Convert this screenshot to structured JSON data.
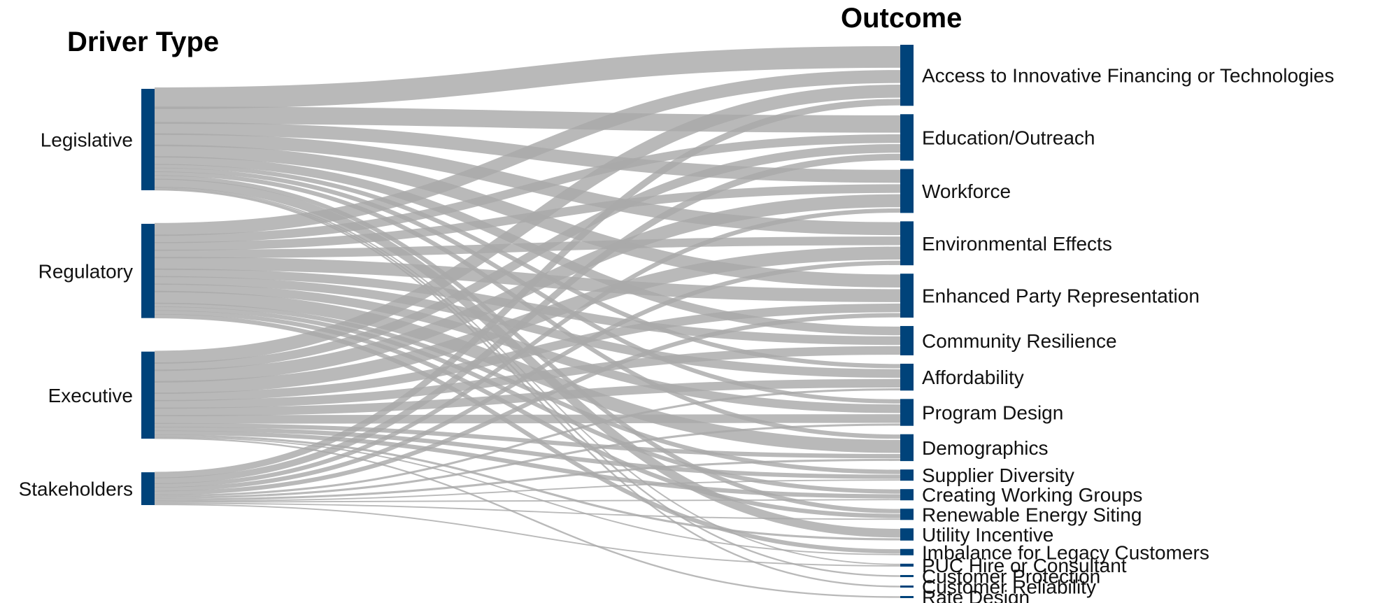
{
  "titles": {
    "left": "Driver Type",
    "right": "Outcome"
  },
  "colors": {
    "node": "#00437a",
    "link": "#a9a9a9"
  },
  "diagram": {
    "type": "sankey",
    "sources": [
      {
        "name": "Legislative"
      },
      {
        "name": "Regulatory"
      },
      {
        "name": "Executive"
      },
      {
        "name": "Stakeholders"
      }
    ],
    "targets": [
      {
        "name": "Access to Innovative Financing or Technologies"
      },
      {
        "name": "Education/Outreach"
      },
      {
        "name": "Workforce"
      },
      {
        "name": "Environmental Effects"
      },
      {
        "name": "Enhanced Party Representation"
      },
      {
        "name": "Community Resilience"
      },
      {
        "name": "Affordability"
      },
      {
        "name": "Program Design"
      },
      {
        "name": "Demographics"
      },
      {
        "name": "Supplier Diversity"
      },
      {
        "name": "Creating Working Groups"
      },
      {
        "name": "Renewable Energy Siting"
      },
      {
        "name": "Utility Incentive"
      },
      {
        "name": "Imbalance for Legacy Customers"
      },
      {
        "name": "PUC Hire or Consultant"
      },
      {
        "name": "Customer Protection"
      },
      {
        "name": "Customer Reliability"
      },
      {
        "name": "Rate Design"
      }
    ],
    "links": [
      {
        "s": 0,
        "t": 0,
        "v": 5
      },
      {
        "s": 0,
        "t": 1,
        "v": 4
      },
      {
        "s": 0,
        "t": 2,
        "v": 3
      },
      {
        "s": 0,
        "t": 3,
        "v": 3
      },
      {
        "s": 0,
        "t": 4,
        "v": 3
      },
      {
        "s": 0,
        "t": 5,
        "v": 2
      },
      {
        "s": 0,
        "t": 6,
        "v": 1
      },
      {
        "s": 0,
        "t": 7,
        "v": 1
      },
      {
        "s": 0,
        "t": 8,
        "v": 1
      },
      {
        "s": 0,
        "t": 11,
        "v": 1
      },
      {
        "s": 0,
        "t": 12,
        "v": 2
      },
      {
        "s": 0,
        "t": 14,
        "v": 0.3
      },
      {
        "s": 0,
        "t": 15,
        "v": 0.3
      },
      {
        "s": 0,
        "t": 16,
        "v": 0.3
      },
      {
        "s": 1,
        "t": 0,
        "v": 3
      },
      {
        "s": 1,
        "t": 1,
        "v": 2
      },
      {
        "s": 1,
        "t": 2,
        "v": 2
      },
      {
        "s": 1,
        "t": 3,
        "v": 2
      },
      {
        "s": 1,
        "t": 4,
        "v": 3
      },
      {
        "s": 1,
        "t": 5,
        "v": 2
      },
      {
        "s": 1,
        "t": 6,
        "v": 2
      },
      {
        "s": 1,
        "t": 7,
        "v": 2
      },
      {
        "s": 1,
        "t": 8,
        "v": 3
      },
      {
        "s": 1,
        "t": 9,
        "v": 1
      },
      {
        "s": 1,
        "t": 10,
        "v": 1
      },
      {
        "s": 1,
        "t": 11,
        "v": 1
      },
      {
        "s": 1,
        "t": 13,
        "v": 1
      },
      {
        "s": 2,
        "t": 0,
        "v": 3
      },
      {
        "s": 2,
        "t": 1,
        "v": 2
      },
      {
        "s": 2,
        "t": 2,
        "v": 3
      },
      {
        "s": 2,
        "t": 3,
        "v": 3
      },
      {
        "s": 2,
        "t": 4,
        "v": 2
      },
      {
        "s": 2,
        "t": 5,
        "v": 2
      },
      {
        "s": 2,
        "t": 6,
        "v": 2
      },
      {
        "s": 2,
        "t": 7,
        "v": 2
      },
      {
        "s": 2,
        "t": 8,
        "v": 1
      },
      {
        "s": 2,
        "t": 9,
        "v": 1
      },
      {
        "s": 2,
        "t": 10,
        "v": 1
      },
      {
        "s": 2,
        "t": 12,
        "v": 0.5
      },
      {
        "s": 2,
        "t": 13,
        "v": 0.3
      },
      {
        "s": 2,
        "t": 17,
        "v": 0.3
      },
      {
        "s": 3,
        "t": 0,
        "v": 1.5
      },
      {
        "s": 3,
        "t": 1,
        "v": 1.5
      },
      {
        "s": 3,
        "t": 2,
        "v": 1
      },
      {
        "s": 3,
        "t": 3,
        "v": 1
      },
      {
        "s": 3,
        "t": 4,
        "v": 1
      },
      {
        "s": 3,
        "t": 6,
        "v": 0.5
      },
      {
        "s": 3,
        "t": 7,
        "v": 0.5
      },
      {
        "s": 3,
        "t": 8,
        "v": 0.5
      },
      {
        "s": 3,
        "t": 9,
        "v": 0.3
      },
      {
        "s": 3,
        "t": 10,
        "v": 0.3
      },
      {
        "s": 3,
        "t": 11,
        "v": 0.3
      },
      {
        "s": 3,
        "t": 14,
        "v": 0.3
      }
    ]
  }
}
